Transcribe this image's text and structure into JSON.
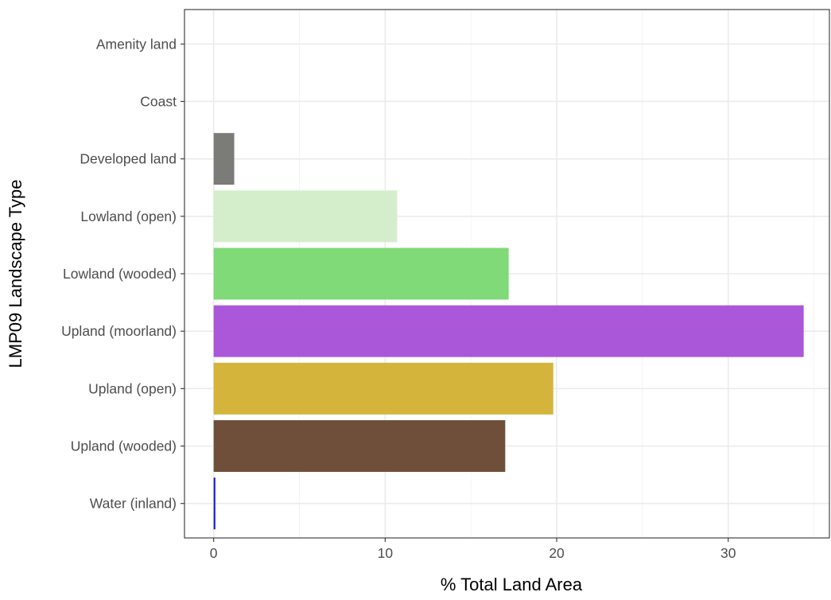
{
  "chart_data": {
    "type": "bar",
    "orientation": "horizontal",
    "title": "",
    "xlabel": "% Total Land Area",
    "ylabel": "LMP09 Landscape Type",
    "xlim": [
      -1.7,
      35.9
    ],
    "xticks": [
      0,
      10,
      20,
      30
    ],
    "xtick_labels": [
      "0",
      "10",
      "20",
      "30"
    ],
    "grid": true,
    "legend": "none",
    "categories": [
      "Amenity land",
      "Coast",
      "Developed land",
      "Lowland (open)",
      "Lowland (wooded)",
      "Upland (moorland)",
      "Upland (open)",
      "Upland (wooded)",
      "Water (inland)"
    ],
    "values": [
      0,
      0,
      1.2,
      10.7,
      17.2,
      34.4,
      19.8,
      17.0,
      0.1
    ],
    "colors": [
      "#9aa4ad",
      "#e8d9a8",
      "#7b7b78",
      "#d4eecb",
      "#7fda77",
      "#ab57d9",
      "#d4b43b",
      "#704f3a",
      "#1a1ad6"
    ],
    "style": {
      "axis_color": "#333333",
      "grid_major_color": "#ebebeb",
      "grid_minor_color": "#f4f4f4",
      "tick_label_color": "#4d4d4d",
      "axis_title_color": "#000000"
    }
  }
}
